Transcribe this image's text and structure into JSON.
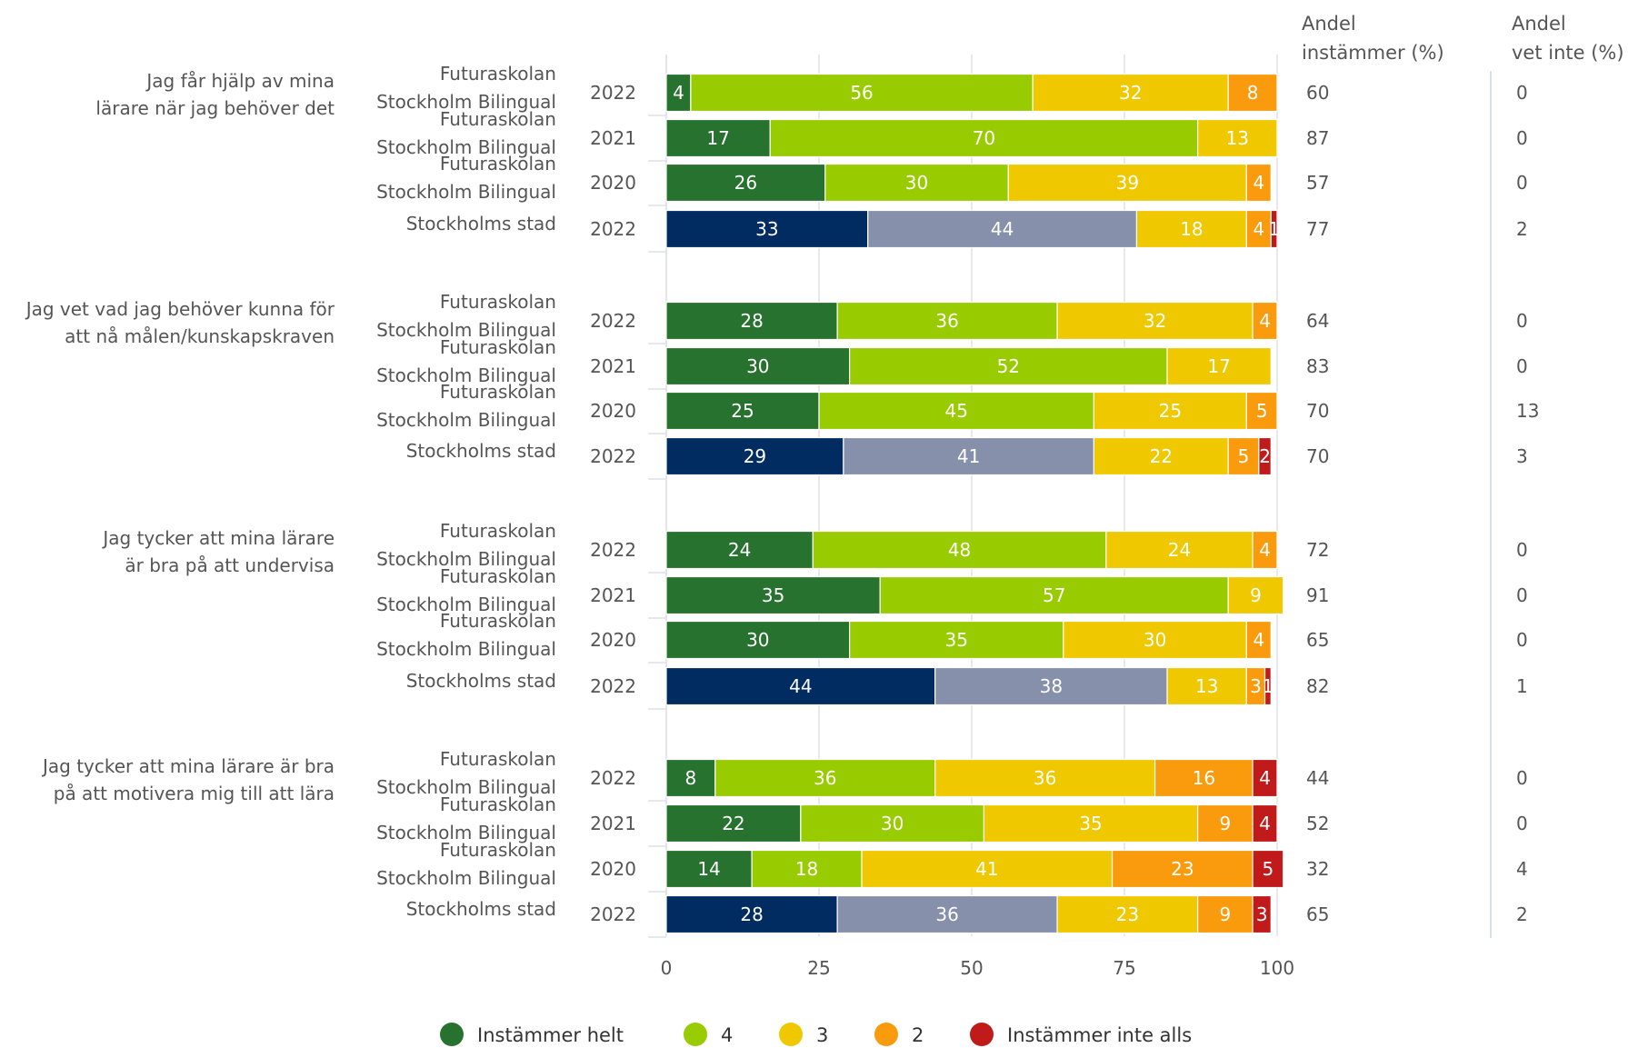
{
  "chart_data": {
    "type": "bar",
    "orientation": "horizontal",
    "stacked": true,
    "xlim": [
      0,
      100
    ],
    "xticks": [
      "0",
      "25",
      "50",
      "75",
      "100"
    ],
    "grid": true,
    "legend_position": "bottom",
    "column_headers": {
      "instammer": [
        "Andel",
        "instämmer (%)"
      ],
      "vet_inte": [
        "Andel",
        "vet inte (%)"
      ]
    },
    "legend": [
      {
        "name": "Instämmer helt",
        "color": "#26722e"
      },
      {
        "name": "4",
        "color": "#99cc00"
      },
      {
        "name": "3",
        "color": "#f0c800"
      },
      {
        "name": "2",
        "color": "#f99b0c"
      },
      {
        "name": "Instämmer inte alls",
        "color": "#c11a1a"
      }
    ],
    "stad_colors": [
      "#002c62",
      "#8690aa",
      "#f0c800",
      "#f99b0c",
      "#c11a1a"
    ],
    "groups": [
      {
        "question": [
          "Jag får hjälp av mina",
          "lärare när jag behöver det"
        ],
        "rows": [
          {
            "label": [
              "Futuraskolan",
              "Stockholm Bilingual"
            ],
            "year": "2022",
            "values": [
              4,
              56,
              32,
              8,
              0
            ],
            "instammer": "60",
            "vet_inte": "0",
            "stad": false
          },
          {
            "label": [
              "Futuraskolan",
              "Stockholm Bilingual"
            ],
            "year": "2021",
            "values": [
              17,
              70,
              13,
              0,
              0
            ],
            "instammer": "87",
            "vet_inte": "0",
            "stad": false
          },
          {
            "label": [
              "Futuraskolan",
              "Stockholm Bilingual"
            ],
            "year": "2020",
            "values": [
              26,
              30,
              39,
              4,
              0
            ],
            "instammer": "57",
            "vet_inte": "0",
            "stad": false
          },
          {
            "label": [
              "Stockholms stad"
            ],
            "year": "2022",
            "values": [
              33,
              44,
              18,
              4,
              1
            ],
            "instammer": "77",
            "vet_inte": "2",
            "stad": true
          }
        ]
      },
      {
        "question": [
          "Jag vet vad jag behöver kunna för",
          "att nå målen/kunskapskraven"
        ],
        "rows": [
          {
            "label": [
              "Futuraskolan",
              "Stockholm Bilingual"
            ],
            "year": "2022",
            "values": [
              28,
              36,
              32,
              4,
              0
            ],
            "instammer": "64",
            "vet_inte": "0",
            "stad": false
          },
          {
            "label": [
              "Futuraskolan",
              "Stockholm Bilingual"
            ],
            "year": "2021",
            "values": [
              30,
              52,
              17,
              0,
              0
            ],
            "instammer": "83",
            "vet_inte": "0",
            "stad": false
          },
          {
            "label": [
              "Futuraskolan",
              "Stockholm Bilingual"
            ],
            "year": "2020",
            "values": [
              25,
              45,
              25,
              5,
              0
            ],
            "instammer": "70",
            "vet_inte": "13",
            "stad": false
          },
          {
            "label": [
              "Stockholms stad"
            ],
            "year": "2022",
            "values": [
              29,
              41,
              22,
              5,
              2
            ],
            "instammer": "70",
            "vet_inte": "3",
            "stad": true
          }
        ]
      },
      {
        "question": [
          "Jag tycker att mina lärare",
          "är bra på att undervisa"
        ],
        "rows": [
          {
            "label": [
              "Futuraskolan",
              "Stockholm Bilingual"
            ],
            "year": "2022",
            "values": [
              24,
              48,
              24,
              4,
              0
            ],
            "instammer": "72",
            "vet_inte": "0",
            "stad": false
          },
          {
            "label": [
              "Futuraskolan",
              "Stockholm Bilingual"
            ],
            "year": "2021",
            "values": [
              35,
              57,
              9,
              0,
              0
            ],
            "instammer": "91",
            "vet_inte": "0",
            "stad": false
          },
          {
            "label": [
              "Futuraskolan",
              "Stockholm Bilingual"
            ],
            "year": "2020",
            "values": [
              30,
              35,
              30,
              4,
              0
            ],
            "instammer": "65",
            "vet_inte": "0",
            "stad": false
          },
          {
            "label": [
              "Stockholms stad"
            ],
            "year": "2022",
            "values": [
              44,
              38,
              13,
              3,
              1
            ],
            "instammer": "82",
            "vet_inte": "1",
            "stad": true
          }
        ]
      },
      {
        "question": [
          "Jag tycker att mina lärare är bra",
          "på att motivera mig till att lära"
        ],
        "rows": [
          {
            "label": [
              "Futuraskolan",
              "Stockholm Bilingual"
            ],
            "year": "2022",
            "values": [
              8,
              36,
              36,
              16,
              4
            ],
            "instammer": "44",
            "vet_inte": "0",
            "stad": false
          },
          {
            "label": [
              "Futuraskolan",
              "Stockholm Bilingual"
            ],
            "year": "2021",
            "values": [
              22,
              30,
              35,
              9,
              4
            ],
            "instammer": "52",
            "vet_inte": "0",
            "stad": false
          },
          {
            "label": [
              "Futuraskolan",
              "Stockholm Bilingual"
            ],
            "year": "2020",
            "values": [
              14,
              18,
              41,
              23,
              5
            ],
            "instammer": "32",
            "vet_inte": "4",
            "stad": false
          },
          {
            "label": [
              "Stockholms stad"
            ],
            "year": "2022",
            "values": [
              28,
              36,
              23,
              9,
              3
            ],
            "instammer": "65",
            "vet_inte": "2",
            "stad": true
          }
        ]
      }
    ]
  }
}
